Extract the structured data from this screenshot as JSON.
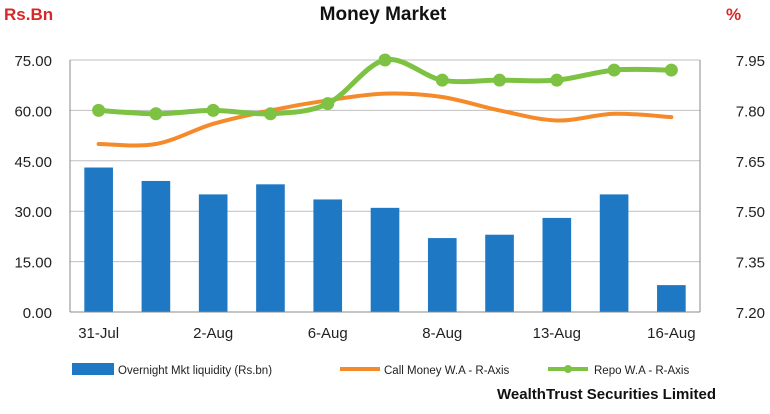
{
  "chart_data": {
    "type": "bar",
    "title": "Money Market",
    "left_unit": "Rs.Bn",
    "right_unit": "%",
    "colors": {
      "bars": "#1f78c4",
      "call_money": "#f58a2a",
      "repo": "#7dc242",
      "units_red": "#d62828",
      "grid": "#bfbfbf"
    },
    "categories": [
      "31-Jul",
      "",
      "2-Aug",
      "",
      "6-Aug",
      "",
      "8-Aug",
      "",
      "13-Aug",
      "",
      "16-Aug"
    ],
    "x_tick_labels": [
      "31-Jul",
      "2-Aug",
      "6-Aug",
      "8-Aug",
      "13-Aug",
      "16-Aug"
    ],
    "y_left": {
      "ticks": [
        "0.00",
        "15.00",
        "30.00",
        "45.00",
        "60.00",
        "75.00"
      ],
      "min": 0,
      "max": 75
    },
    "y_right": {
      "ticks": [
        "7.20",
        "7.35",
        "7.50",
        "7.65",
        "7.80",
        "7.95"
      ],
      "min": 7.2,
      "max": 7.95
    },
    "series": [
      {
        "name": "Overnight Mkt liquidity (Rs.bn)",
        "type": "bar",
        "axis": "left",
        "values": [
          43.0,
          39.0,
          35.0,
          38.0,
          33.5,
          31.0,
          22.0,
          23.0,
          28.0,
          35.0,
          8.0
        ]
      },
      {
        "name": "Call Money W.A - R-Axis",
        "type": "line",
        "axis": "right",
        "values": [
          7.7,
          7.7,
          7.76,
          7.8,
          7.83,
          7.85,
          7.84,
          7.8,
          7.77,
          7.79,
          7.78
        ]
      },
      {
        "name": "Repo W.A - R-Axis",
        "type": "line",
        "axis": "right",
        "values": [
          7.8,
          7.79,
          7.8,
          7.79,
          7.82,
          7.95,
          7.89,
          7.89,
          7.89,
          7.92,
          7.92
        ]
      }
    ],
    "grid": true,
    "legend_position": "bottom",
    "footer": "WealthTrust Securities Limited"
  }
}
